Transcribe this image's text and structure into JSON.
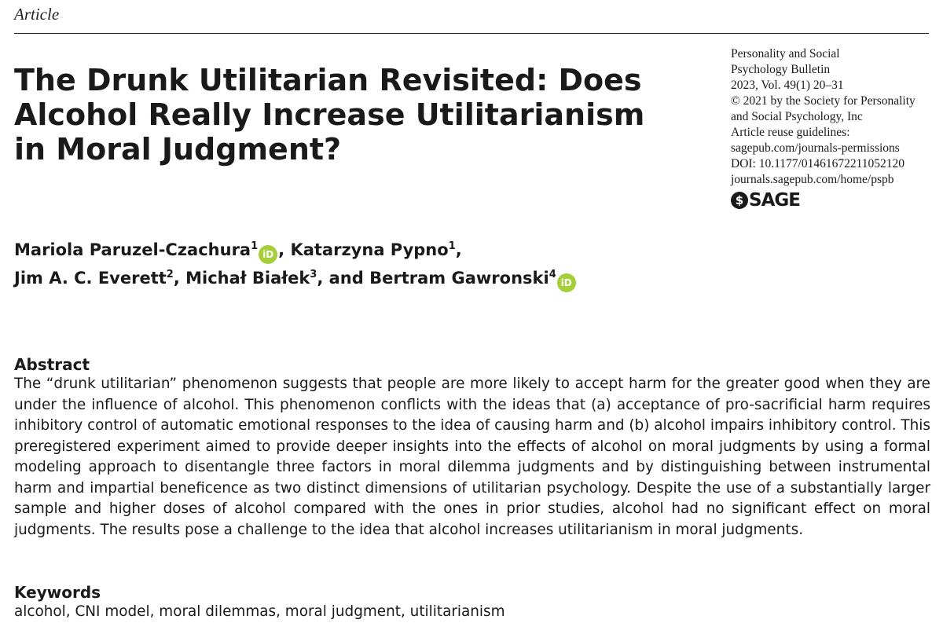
{
  "header": {
    "article_type": "Article"
  },
  "title": {
    "lines": [
      "The Drunk Utilitarian Revisited: Does",
      "Alcohol Really Increase Utilitarianism",
      "in Moral Judgment?"
    ]
  },
  "journal_info": {
    "lines": [
      "Personality and Social",
      "Psychology Bulletin",
      "2023, Vol. 49(1) 20–31",
      "© 2021 by the Society for Personality",
      "and Social Psychology, Inc",
      "Article reuse guidelines:",
      "sagepub.com/journals-permissions",
      "DOI: 10.1177/01461672211052120",
      "journals.sagepub.com/home/pspb"
    ],
    "publisher_logo": "SAGE"
  },
  "authors": {
    "line1": [
      {
        "name": "Mariola Paruzel-Czachura",
        "affil": "1",
        "orcid": true,
        "sep": ", "
      },
      {
        "name": "Katarzyna Pypno",
        "affil": "1",
        "orcid": false,
        "sep": ","
      }
    ],
    "line2": [
      {
        "name": "Jim A. C. Everett",
        "affil": "2",
        "orcid": false,
        "sep": ", "
      },
      {
        "name": "Michał Białek",
        "affil": "3",
        "orcid": false,
        "sep": ", and "
      },
      {
        "name": "Bertram Gawronski",
        "affil": "4",
        "orcid": true,
        "sep": ""
      }
    ],
    "orcid_label": "iD",
    "orcid_color": "#a6ce39"
  },
  "abstract": {
    "heading": "Abstract",
    "text": "The “drunk utilitarian” phenomenon suggests that people are more likely to accept harm for the greater good when they are under the influence of alcohol. This phenomenon conflicts with the ideas that (a) acceptance of pro-sacrificial harm requires inhibitory control of automatic emotional responses to the idea of causing harm and (b) alcohol impairs inhibitory control. This preregistered experiment aimed to provide deeper insights into the effects of alcohol on moral judgments by using a formal modeling approach to disentangle three factors in moral dilemma judgments and by distinguishing between instrumental harm and impartial beneficence as two distinct dimensions of utilitarian psychology. Despite the use of a substantially larger sample and higher doses of alcohol compared with the ones in prior studies, alcohol had no significant effect on moral judgments. The results pose a challenge to the idea that alcohol increases utilitarianism in moral judgments."
  },
  "keywords": {
    "heading": "Keywords",
    "text": "alcohol, CNI model, moral dilemmas, moral judgment, utilitarianism"
  }
}
